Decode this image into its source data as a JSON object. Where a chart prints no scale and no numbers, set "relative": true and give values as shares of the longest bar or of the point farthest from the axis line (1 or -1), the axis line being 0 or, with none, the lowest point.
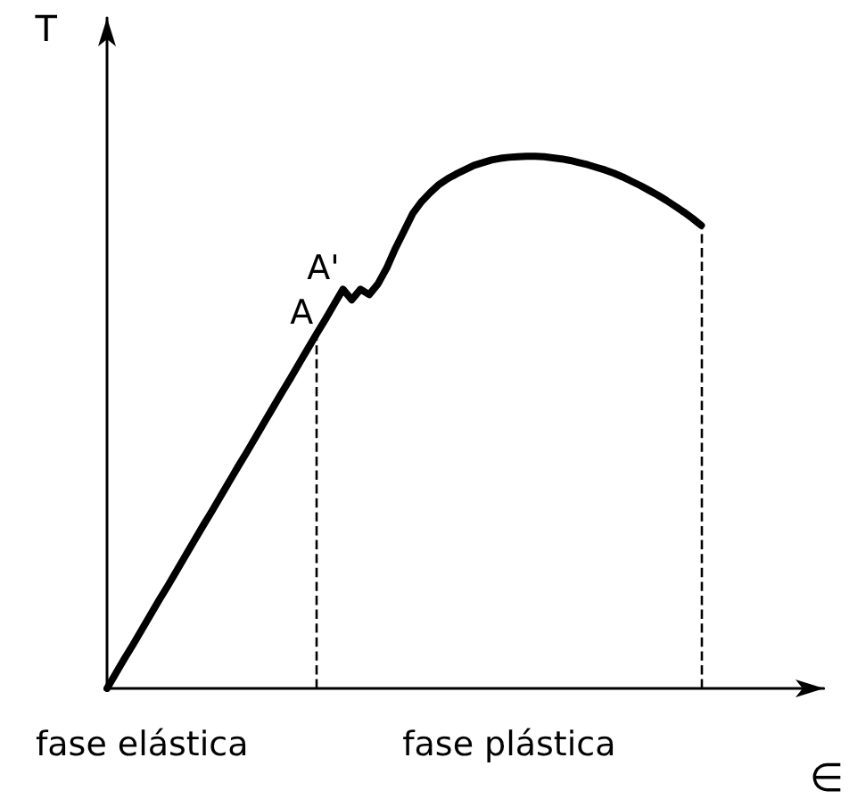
{
  "chart_data": {
    "type": "line",
    "relative": true,
    "xlabel": "∈",
    "ylabel": "T",
    "marker": "none",
    "line_style": "solid",
    "categories": [
      null,
      null,
      null,
      null,
      null,
      null,
      null,
      null,
      null,
      null,
      null,
      null,
      null,
      null,
      null,
      null,
      null,
      null,
      null,
      null,
      null,
      null,
      null,
      null,
      null,
      null,
      null,
      null,
      null,
      null,
      null,
      null,
      null,
      null,
      null,
      null,
      null,
      null,
      null,
      null,
      null,
      null,
      null,
      null,
      null,
      null,
      null,
      null,
      null,
      null,
      null,
      null,
      null,
      null,
      null,
      null,
      null,
      null,
      null,
      null,
      null,
      null,
      null,
      null,
      null,
      null,
      null,
      null,
      null,
      null,
      null,
      null,
      null,
      null,
      null,
      null,
      null,
      null,
      null,
      null,
      null,
      null,
      null
    ],
    "series": [
      {
        "color": "#000000",
        "values": [
          0,
          0.028,
          0.056,
          0.083,
          0.111,
          0.139,
          0.167,
          0.194,
          0.222,
          0.25,
          0.278,
          0.306,
          0.333,
          0.361,
          0.389,
          0.417,
          0.444,
          0.472,
          0.5,
          0.528,
          0.556,
          0.583,
          0.611,
          0.639,
          0.667,
          0.694,
          0.722,
          0.75,
          0.73,
          0.75,
          0.74,
          0.76,
          0.79,
          0.827,
          0.86,
          0.893,
          0.915,
          0.932,
          0.947,
          0.958,
          0.967,
          0.975,
          0.983,
          0.988,
          0.993,
          0.996,
          0.998,
          0.999,
          1,
          1,
          0.999,
          0.997,
          0.995,
          0.992,
          0.988,
          0.984,
          0.979,
          0.974,
          0.968,
          0.961,
          0.953,
          0.945,
          0.936,
          0.927,
          0.917,
          0.906,
          0.895,
          0.883,
          0.87,
          null,
          null,
          null,
          null,
          null,
          null,
          null,
          null,
          null,
          null,
          null,
          null,
          null,
          null
        ]
      }
    ],
    "annotations": [
      "A",
      "A'",
      "fase elástica",
      "fase plástica"
    ]
  }
}
